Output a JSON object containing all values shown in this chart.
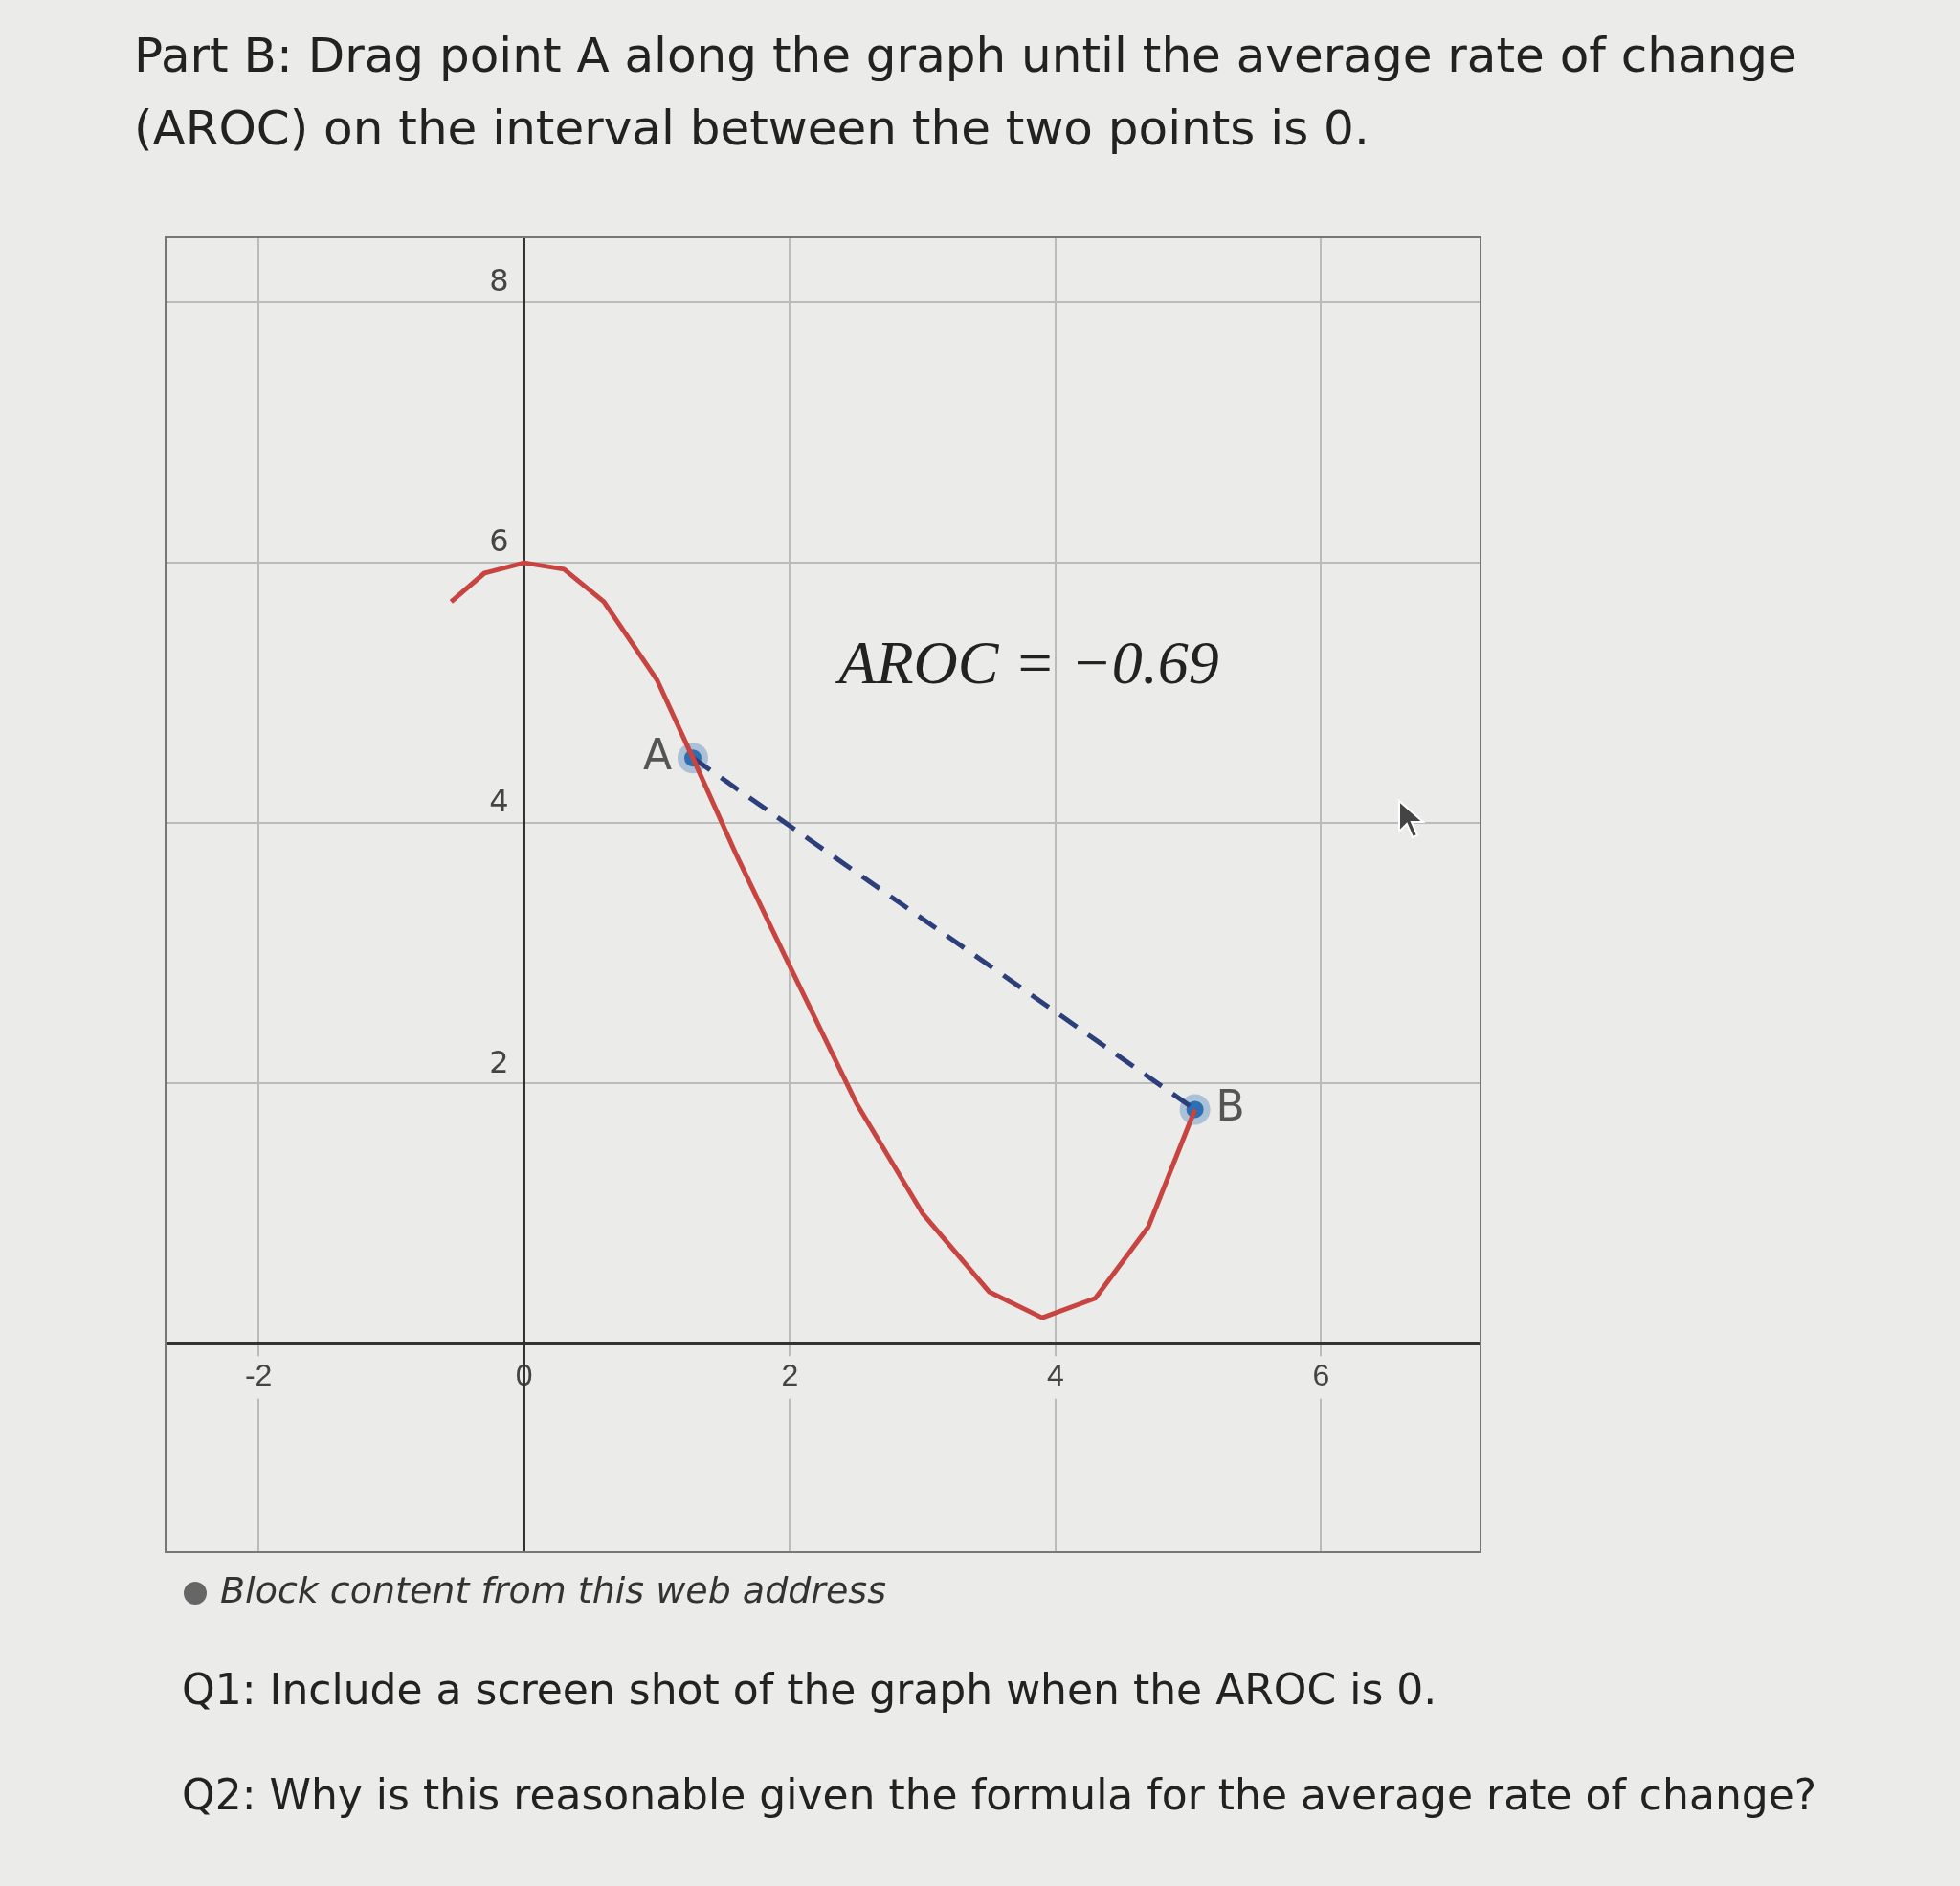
{
  "chart_data": {
    "type": "line",
    "title": "Part B: Drag point A along the graph until the average rate of change (AROC) on the interval between the two points is 0.",
    "xlim": [
      -2.7,
      7.2
    ],
    "ylim": [
      -1.6,
      8.5
    ],
    "xticks": [
      -2,
      0,
      2,
      4,
      6
    ],
    "yticks": [
      2,
      4,
      6,
      8
    ],
    "grid": true,
    "legend": false,
    "series": [
      {
        "type": "line",
        "color": "#c74440",
        "marker": "none",
        "line_style": "solid",
        "x": [
          -0.55,
          -0.3,
          0,
          0.3,
          0.6,
          1.0,
          1.27,
          1.6,
          2.0,
          2.5,
          3.0,
          3.5,
          3.9,
          4.3,
          4.7,
          5.05
        ],
        "values": [
          5.7,
          5.92,
          6.0,
          5.95,
          5.7,
          5.1,
          4.5,
          3.75,
          2.9,
          1.85,
          1.0,
          0.4,
          0.2,
          0.35,
          0.9,
          1.8
        ]
      },
      {
        "type": "line",
        "color": "#2d3f7a",
        "marker": "none",
        "line_style": "dashed",
        "x": [
          1.27,
          5.05
        ],
        "values": [
          4.5,
          1.8
        ]
      },
      {
        "type": "scatter",
        "color": "#2d70b3",
        "marker": "circle",
        "x": [
          1.27,
          5.05
        ],
        "values": [
          4.5,
          1.8
        ]
      }
    ],
    "annotations": [
      "AROC = −0.69",
      {
        "text": "A",
        "x": 1.27,
        "y": 4.5
      },
      {
        "text": "B",
        "x": 5.05,
        "y": 1.8
      },
      "Block content from this web address",
      "Q1: Include a screen shot of the graph when the AROC is 0.",
      "Q2: Why is this reasonable given the formula for the average rate of change?"
    ]
  }
}
